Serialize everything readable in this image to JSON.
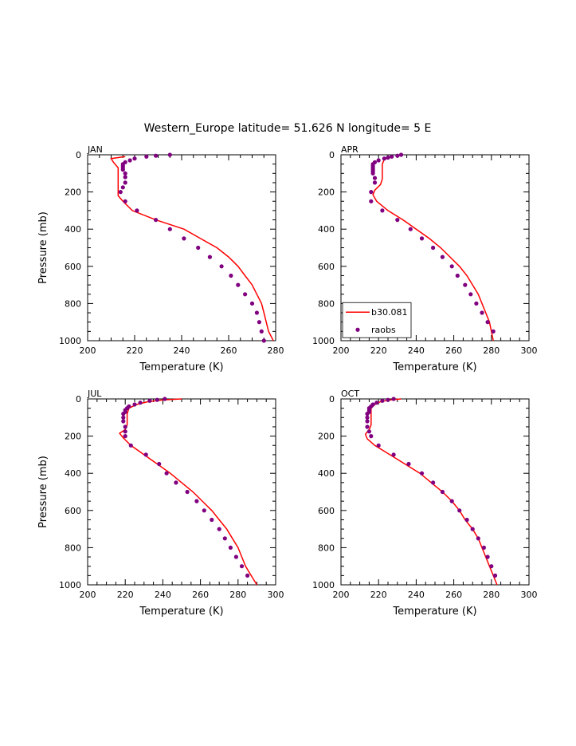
{
  "title": "Western_Europe  latitude= 51.626 N longitude= 5 E",
  "colors": {
    "model_line": "#ff0000",
    "obs_marker": "#800080"
  },
  "chart_data": [
    {
      "type": "line",
      "panel_label": "JAN",
      "xlabel": "Temperature (K)",
      "ylabel": "Pressure (mb)",
      "xlim": [
        200,
        280
      ],
      "ylim": [
        1000,
        0
      ],
      "xticks": [
        200,
        220,
        240,
        260,
        280
      ],
      "yticks": [
        0,
        200,
        400,
        600,
        800,
        1000
      ],
      "show_ylabel": true,
      "legend": null,
      "series": [
        {
          "kind": "line",
          "points": [
            [
              216,
              10
            ],
            [
              210,
              20
            ],
            [
              211,
              40
            ],
            [
              213,
              70
            ],
            [
              213,
              100
            ],
            [
              213,
              130
            ],
            [
              213,
              160
            ],
            [
              213,
              190
            ],
            [
              213,
              220
            ],
            [
              215,
              250
            ],
            [
              219,
              300
            ],
            [
              229,
              350
            ],
            [
              241,
              400
            ],
            [
              248,
              450
            ],
            [
              255,
              500
            ],
            [
              260,
              550
            ],
            [
              264,
              600
            ],
            [
              267,
              650
            ],
            [
              270,
              700
            ],
            [
              272,
              750
            ],
            [
              274,
              800
            ],
            [
              275,
              850
            ],
            [
              276,
              900
            ],
            [
              277,
              950
            ],
            [
              279,
              1000
            ]
          ]
        },
        {
          "kind": "scatter",
          "points": [
            [
              235,
              0
            ],
            [
              229,
              5
            ],
            [
              225,
              10
            ],
            [
              220,
              20
            ],
            [
              218,
              30
            ],
            [
              216,
              40
            ],
            [
              215,
              50
            ],
            [
              215,
              60
            ],
            [
              215,
              70
            ],
            [
              215,
              80
            ],
            [
              216,
              100
            ],
            [
              216,
              120
            ],
            [
              216,
              150
            ],
            [
              215,
              175
            ],
            [
              214,
              200
            ],
            [
              216,
              250
            ],
            [
              221,
              300
            ],
            [
              229,
              350
            ],
            [
              235,
              400
            ],
            [
              241,
              450
            ],
            [
              247,
              500
            ],
            [
              252,
              550
            ],
            [
              257,
              600
            ],
            [
              261,
              650
            ],
            [
              264,
              700
            ],
            [
              267,
              750
            ],
            [
              270,
              800
            ],
            [
              272,
              850
            ],
            [
              273,
              900
            ],
            [
              274,
              950
            ],
            [
              275,
              1000
            ]
          ]
        }
      ]
    },
    {
      "type": "line",
      "panel_label": "APR",
      "xlabel": "Temperature (K)",
      "ylabel": "",
      "xlim": [
        200,
        300
      ],
      "ylim": [
        1000,
        0
      ],
      "xticks": [
        200,
        220,
        240,
        260,
        280,
        300
      ],
      "yticks": [
        0,
        200,
        400,
        600,
        800,
        1000
      ],
      "show_ylabel": false,
      "legend": [
        {
          "kind": "line",
          "label": "b30.081"
        },
        {
          "kind": "scatter",
          "label": "raobs"
        }
      ],
      "series": [
        {
          "kind": "line",
          "points": [
            [
              227,
              10
            ],
            [
              223,
              25
            ],
            [
              222,
              50
            ],
            [
              222,
              80
            ],
            [
              222,
              100
            ],
            [
              222,
              130
            ],
            [
              221,
              160
            ],
            [
              218,
              190
            ],
            [
              217,
              215
            ],
            [
              219,
              250
            ],
            [
              225,
              300
            ],
            [
              233,
              350
            ],
            [
              240,
              400
            ],
            [
              247,
              450
            ],
            [
              253,
              500
            ],
            [
              258,
              550
            ],
            [
              263,
              600
            ],
            [
              267,
              650
            ],
            [
              270,
              700
            ],
            [
              273,
              750
            ],
            [
              275,
              800
            ],
            [
              277,
              850
            ],
            [
              279,
              900
            ],
            [
              280,
              950
            ],
            [
              281,
              1000
            ]
          ]
        },
        {
          "kind": "scatter",
          "points": [
            [
              232,
              0
            ],
            [
              230,
              5
            ],
            [
              227,
              10
            ],
            [
              225,
              15
            ],
            [
              223,
              20
            ],
            [
              220,
              30
            ],
            [
              218,
              40
            ],
            [
              217,
              50
            ],
            [
              217,
              60
            ],
            [
              217,
              70
            ],
            [
              217,
              80
            ],
            [
              217,
              90
            ],
            [
              217,
              100
            ],
            [
              218,
              125
            ],
            [
              218,
              150
            ],
            [
              216,
              200
            ],
            [
              216,
              250
            ],
            [
              222,
              300
            ],
            [
              230,
              350
            ],
            [
              237,
              400
            ],
            [
              243,
              450
            ],
            [
              249,
              500
            ],
            [
              254,
              550
            ],
            [
              259,
              600
            ],
            [
              262,
              650
            ],
            [
              266,
              700
            ],
            [
              269,
              750
            ],
            [
              272,
              800
            ],
            [
              275,
              850
            ],
            [
              278,
              900
            ],
            [
              281,
              950
            ]
          ]
        }
      ]
    },
    {
      "type": "line",
      "panel_label": "JUL",
      "xlabel": "Temperature (K)",
      "ylabel": "Pressure (mb)",
      "xlim": [
        200,
        300
      ],
      "ylim": [
        1000,
        0
      ],
      "xticks": [
        200,
        220,
        240,
        260,
        280,
        300
      ],
      "yticks": [
        0,
        200,
        400,
        600,
        800,
        1000
      ],
      "show_ylabel": true,
      "legend": null,
      "series": [
        {
          "kind": "line",
          "points": [
            [
              250,
              0
            ],
            [
              240,
              5
            ],
            [
              232,
              15
            ],
            [
              226,
              30
            ],
            [
              222,
              50
            ],
            [
              221,
              80
            ],
            [
              221,
              110
            ],
            [
              221,
              140
            ],
            [
              220,
              165
            ],
            [
              217,
              185
            ],
            [
              219,
              210
            ],
            [
              223,
              250
            ],
            [
              230,
              300
            ],
            [
              237,
              350
            ],
            [
              244,
              400
            ],
            [
              250,
              450
            ],
            [
              256,
              500
            ],
            [
              261,
              550
            ],
            [
              266,
              600
            ],
            [
              270,
              650
            ],
            [
              274,
              700
            ],
            [
              277,
              750
            ],
            [
              280,
              800
            ],
            [
              282,
              850
            ],
            [
              284,
              900
            ],
            [
              287,
              950
            ],
            [
              290,
              1000
            ]
          ]
        },
        {
          "kind": "scatter",
          "points": [
            [
              241,
              0
            ],
            [
              237,
              5
            ],
            [
              233,
              10
            ],
            [
              228,
              20
            ],
            [
              225,
              30
            ],
            [
              222,
              40
            ],
            [
              221,
              50
            ],
            [
              220,
              60
            ],
            [
              220,
              70
            ],
            [
              219,
              80
            ],
            [
              219,
              100
            ],
            [
              219,
              120
            ],
            [
              220,
              150
            ],
            [
              220,
              175
            ],
            [
              220,
              200
            ],
            [
              223,
              250
            ],
            [
              231,
              300
            ],
            [
              238,
              350
            ],
            [
              242,
              400
            ],
            [
              247,
              450
            ],
            [
              253,
              500
            ],
            [
              258,
              550
            ],
            [
              262,
              600
            ],
            [
              266,
              650
            ],
            [
              270,
              700
            ],
            [
              273,
              750
            ],
            [
              276,
              800
            ],
            [
              279,
              850
            ],
            [
              282,
              900
            ],
            [
              285,
              950
            ]
          ]
        }
      ]
    },
    {
      "type": "line",
      "panel_label": "OCT",
      "xlabel": "Temperature (K)",
      "ylabel": "",
      "xlim": [
        200,
        300
      ],
      "ylim": [
        1000,
        0
      ],
      "xticks": [
        200,
        220,
        240,
        260,
        280,
        300
      ],
      "yticks": [
        0,
        200,
        400,
        600,
        800,
        1000
      ],
      "show_ylabel": false,
      "legend": null,
      "series": [
        {
          "kind": "line",
          "points": [
            [
              232,
              0
            ],
            [
              226,
              5
            ],
            [
              221,
              15
            ],
            [
              218,
              30
            ],
            [
              216,
              50
            ],
            [
              216,
              80
            ],
            [
              216,
              110
            ],
            [
              216,
              140
            ],
            [
              215,
              165
            ],
            [
              213,
              190
            ],
            [
              214,
              215
            ],
            [
              218,
              250
            ],
            [
              226,
              300
            ],
            [
              234,
              350
            ],
            [
              242,
              400
            ],
            [
              248,
              450
            ],
            [
              254,
              500
            ],
            [
              259,
              550
            ],
            [
              263,
              600
            ],
            [
              266,
              650
            ],
            [
              270,
              700
            ],
            [
              273,
              750
            ],
            [
              275,
              800
            ],
            [
              277,
              850
            ],
            [
              279,
              900
            ],
            [
              281,
              950
            ],
            [
              283,
              1000
            ]
          ]
        },
        {
          "kind": "scatter",
          "points": [
            [
              228,
              0
            ],
            [
              225,
              5
            ],
            [
              222,
              10
            ],
            [
              219,
              20
            ],
            [
              217,
              30
            ],
            [
              216,
              40
            ],
            [
              215,
              50
            ],
            [
              215,
              60
            ],
            [
              215,
              70
            ],
            [
              214,
              80
            ],
            [
              214,
              100
            ],
            [
              214,
              120
            ],
            [
              214,
              150
            ],
            [
              215,
              175
            ],
            [
              216,
              200
            ],
            [
              220,
              250
            ],
            [
              228,
              300
            ],
            [
              236,
              350
            ],
            [
              243,
              400
            ],
            [
              249,
              450
            ],
            [
              254,
              500
            ],
            [
              259,
              550
            ],
            [
              263,
              600
            ],
            [
              267,
              650
            ],
            [
              270,
              700
            ],
            [
              273,
              750
            ],
            [
              276,
              800
            ],
            [
              278,
              850
            ],
            [
              280,
              900
            ],
            [
              282,
              950
            ]
          ]
        }
      ]
    }
  ]
}
